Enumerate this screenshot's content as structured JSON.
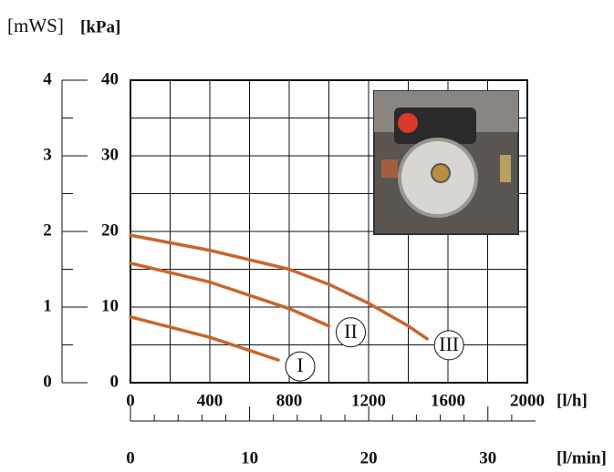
{
  "chart_data": {
    "type": "line",
    "y2_label": "[mWS]",
    "y_label": "[kPa]",
    "x_label": "[l/h]",
    "x2_label": "[l/min]",
    "xlim": [
      0,
      2000
    ],
    "xticks": [
      0,
      400,
      800,
      1200,
      1600,
      2000
    ],
    "xminor": [
      200,
      600,
      1000,
      1400,
      1800
    ],
    "ylim": [
      0,
      40
    ],
    "yticks": [
      0,
      10,
      20,
      30,
      40
    ],
    "yminor": [
      5,
      15,
      25,
      35
    ],
    "y2lim": [
      0,
      4
    ],
    "y2ticks": [
      0,
      1,
      2,
      3,
      4
    ],
    "y2minor": [
      0.5,
      1.5,
      2.5,
      3.5
    ],
    "x2lim": [
      0,
      34
    ],
    "x2ticks": [
      0,
      10,
      20,
      30
    ],
    "x2minor": [
      2,
      4,
      6,
      8,
      12,
      14,
      16,
      18,
      22,
      24,
      26,
      28,
      32
    ],
    "grid": true,
    "series": [
      {
        "name": "I",
        "color": "#c8652e",
        "x": [
          0,
          400,
          745
        ],
        "values": [
          8.7,
          6.0,
          3.0
        ]
      },
      {
        "name": "II",
        "color": "#c8652e",
        "x": [
          0,
          400,
          800,
          1000
        ],
        "values": [
          15.8,
          13.3,
          9.8,
          7.5
        ]
      },
      {
        "name": "III",
        "color": "#c8652e",
        "x": [
          0,
          400,
          800,
          1000,
          1200,
          1400,
          1495
        ],
        "values": [
          19.5,
          17.5,
          15.0,
          13.0,
          10.5,
          7.5,
          5.8
        ]
      }
    ]
  }
}
